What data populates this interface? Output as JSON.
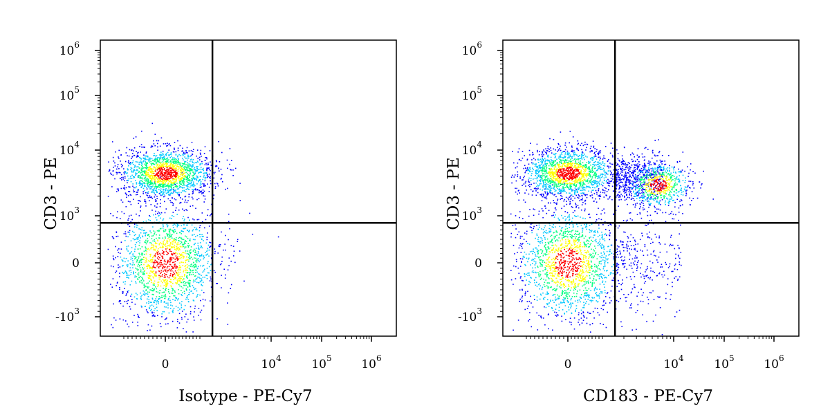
{
  "chart_data": [
    {
      "type": "scatter",
      "subtype": "flow-cytometry-density-dot-plot",
      "xlabel": "Isotype - PE-Cy7",
      "ylabel": "CD3 - PE",
      "x_scale": "biexponential",
      "y_scale": "biexponential",
      "x_ticks": [
        {
          "value": 0,
          "base": "0",
          "exp": ""
        },
        {
          "value": 10000,
          "base": "10",
          "exp": "4"
        },
        {
          "value": 100000,
          "base": "10",
          "exp": "5"
        },
        {
          "value": 1000000,
          "base": "10",
          "exp": "6"
        }
      ],
      "y_ticks": [
        {
          "value": -1000,
          "base": "-10",
          "exp": "3"
        },
        {
          "value": 0,
          "base": "0",
          "exp": ""
        },
        {
          "value": 1000,
          "base": "10",
          "exp": "3"
        },
        {
          "value": 10000,
          "base": "10",
          "exp": "4"
        },
        {
          "value": 100000,
          "base": "10",
          "exp": "5"
        },
        {
          "value": 1000000,
          "base": "10",
          "exp": "6"
        }
      ],
      "quadrant_gate": {
        "x": 1500,
        "y": 850
      },
      "populations": [
        {
          "name": "CD3+ Isotype-",
          "center": [
            0,
            4500
          ],
          "density": "high"
        },
        {
          "name": "CD3- Isotype-",
          "center": [
            0,
            0
          ],
          "density": "medium"
        }
      ],
      "grid": false,
      "legend": "none",
      "colormap": [
        "#0000ff",
        "#00c8ff",
        "#00ff80",
        "#ffff00",
        "#ff0000"
      ]
    },
    {
      "type": "scatter",
      "subtype": "flow-cytometry-density-dot-plot",
      "xlabel": "CD183 - PE-Cy7",
      "ylabel": "CD3 - PE",
      "x_scale": "biexponential",
      "y_scale": "biexponential",
      "x_ticks": [
        {
          "value": 0,
          "base": "0",
          "exp": ""
        },
        {
          "value": 10000,
          "base": "10",
          "exp": "4"
        },
        {
          "value": 100000,
          "base": "10",
          "exp": "5"
        },
        {
          "value": 1000000,
          "base": "10",
          "exp": "6"
        }
      ],
      "y_ticks": [
        {
          "value": -1000,
          "base": "-10",
          "exp": "3"
        },
        {
          "value": 0,
          "base": "0",
          "exp": ""
        },
        {
          "value": 1000,
          "base": "10",
          "exp": "3"
        },
        {
          "value": 10000,
          "base": "10",
          "exp": "4"
        },
        {
          "value": 100000,
          "base": "10",
          "exp": "5"
        },
        {
          "value": 1000000,
          "base": "10",
          "exp": "6"
        }
      ],
      "quadrant_gate": {
        "x": 1500,
        "y": 850
      },
      "populations": [
        {
          "name": "CD3+ CD183-",
          "center": [
            0,
            4500
          ],
          "density": "high"
        },
        {
          "name": "CD3+ CD183+",
          "center": [
            6000,
            3000
          ],
          "density": "medium"
        },
        {
          "name": "CD3- CD183-",
          "center": [
            0,
            0
          ],
          "density": "medium"
        }
      ],
      "grid": false,
      "legend": "none",
      "colormap": [
        "#0000ff",
        "#00c8ff",
        "#00ff80",
        "#ffff00",
        "#ff0000"
      ]
    }
  ]
}
